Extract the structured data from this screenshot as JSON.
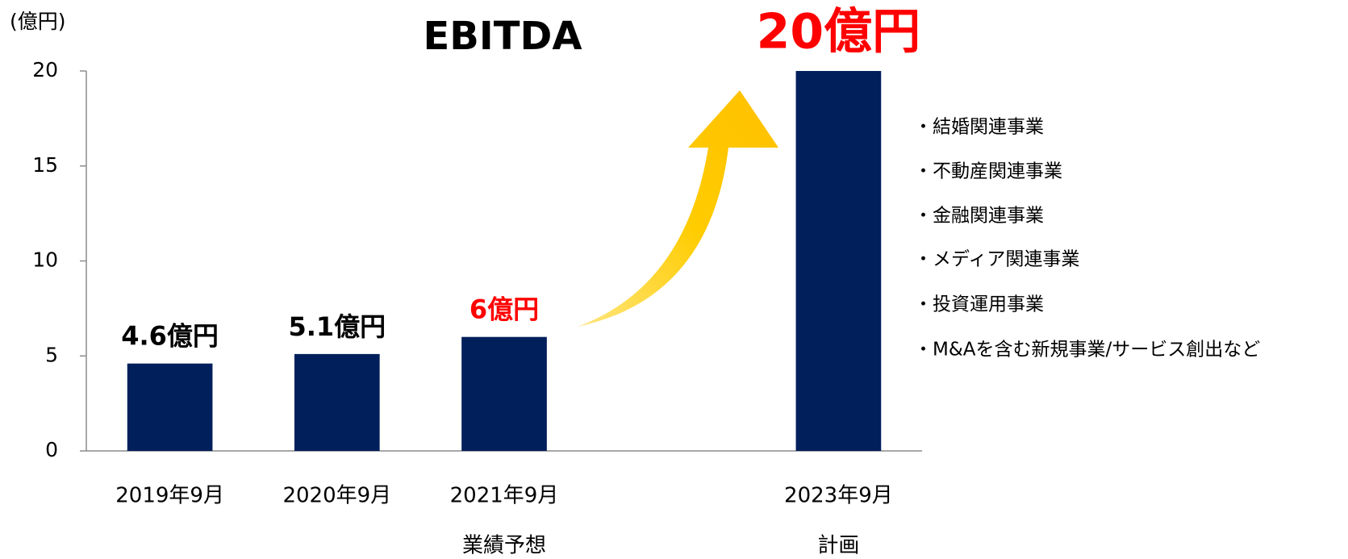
{
  "chart_data": {
    "type": "bar",
    "title": "EBITDA",
    "unit_label": "(億円)",
    "categories": [
      "2019年9月",
      "2020年9月",
      "2021年9月",
      null,
      "2023年9月"
    ],
    "category_notes": [
      null,
      null,
      "業績予想",
      null,
      "計画"
    ],
    "values": [
      4.6,
      5.1,
      6,
      null,
      20
    ],
    "value_labels": [
      "4.6億円",
      "5.1億円",
      "6億円",
      null,
      "20億円"
    ],
    "value_label_colors": [
      "#000000",
      "#000000",
      "#ff0000",
      null,
      "#ff0000"
    ],
    "color": "#001f5b",
    "ylim": [
      0,
      20
    ],
    "yticks": [
      0,
      5,
      10,
      15,
      20
    ],
    "grid": false,
    "list_items": [
      "・結婚関連事業",
      "・不動産関連事業",
      "・金融関連事業",
      "・メディア関連事業",
      "・投資運用事業",
      "・M&Aを含む新規事業/サービス創出など"
    ]
  }
}
